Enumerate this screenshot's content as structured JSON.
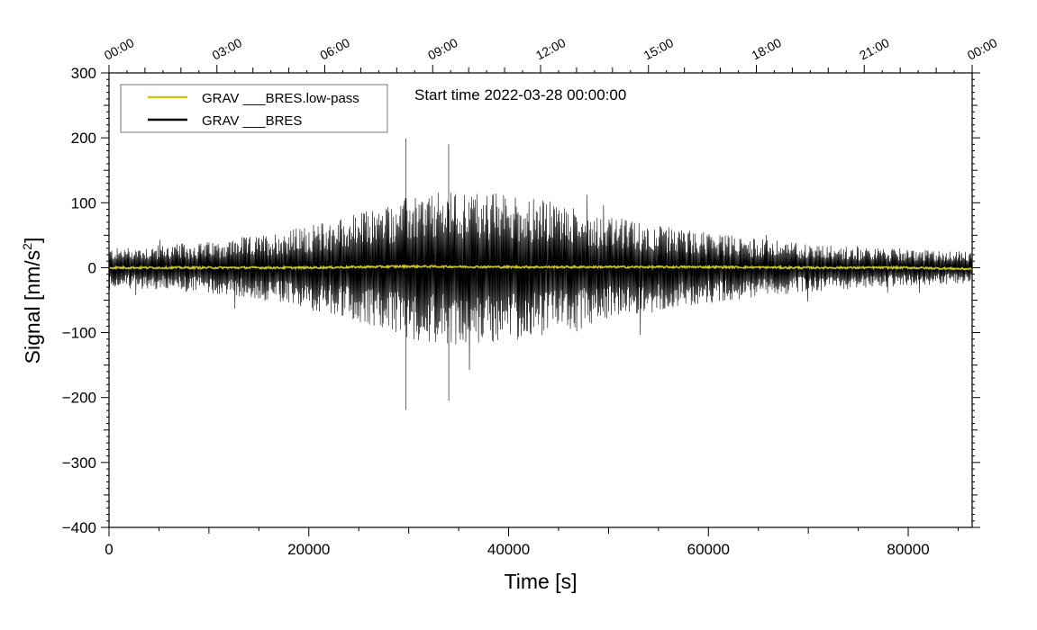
{
  "chart_data": {
    "type": "line",
    "title": "",
    "annotation": "Start time 2022-03-28 00:00:00",
    "xlabel": "Time [s]",
    "ylabel": "Signal [nm/s",
    "ylabel_sup": "2",
    "ylabel_end": "]",
    "xlim": [
      0,
      86400
    ],
    "ylim": [
      -400,
      300
    ],
    "x_ticks": [
      0,
      20000,
      40000,
      60000,
      80000
    ],
    "x_tick_labels": [
      "0",
      "20000",
      "40000",
      "60000",
      "80000"
    ],
    "y_ticks": [
      -400,
      -300,
      -200,
      -100,
      0,
      100,
      200,
      300
    ],
    "y_tick_labels": [
      "−400",
      "−300",
      "−200",
      "−100",
      "0",
      "100",
      "200",
      "300"
    ],
    "top_axis": {
      "unit": "hours",
      "ticks": [
        0,
        3,
        6,
        9,
        12,
        15,
        18,
        21,
        24
      ],
      "tick_labels": [
        "00:00",
        "03:00",
        "06:00",
        "09:00",
        "12:00",
        "15:00",
        "18:00",
        "21:00",
        "00:00"
      ]
    },
    "grid": false,
    "legend_position": "top-left",
    "series": [
      {
        "name": "GRAV ___BRES.low-pass",
        "color": "#c8c81e",
        "description_points": {
          "x": [
            0,
            10000,
            20000,
            30000,
            40000,
            50000,
            60000,
            70000,
            80000,
            86400
          ],
          "y": [
            0,
            0,
            0,
            2,
            1,
            1,
            1,
            0,
            0,
            -2
          ]
        }
      },
      {
        "name": "GRAV ___BRES",
        "color": "#000000",
        "envelope": {
          "x": [
            0,
            5000,
            10000,
            15000,
            20000,
            25000,
            30000,
            35000,
            40000,
            45000,
            50000,
            55000,
            60000,
            65000,
            70000,
            75000,
            80000,
            86400
          ],
          "upper": [
            30,
            35,
            40,
            50,
            65,
            85,
            110,
            120,
            115,
            100,
            80,
            65,
            55,
            45,
            38,
            32,
            28,
            25
          ],
          "lower": [
            -30,
            -35,
            -40,
            -50,
            -65,
            -85,
            -110,
            -120,
            -115,
            -100,
            -80,
            -65,
            -55,
            -45,
            -38,
            -32,
            -28,
            -25
          ],
          "max_peak": 199,
          "min_peak": -219
        }
      }
    ]
  }
}
